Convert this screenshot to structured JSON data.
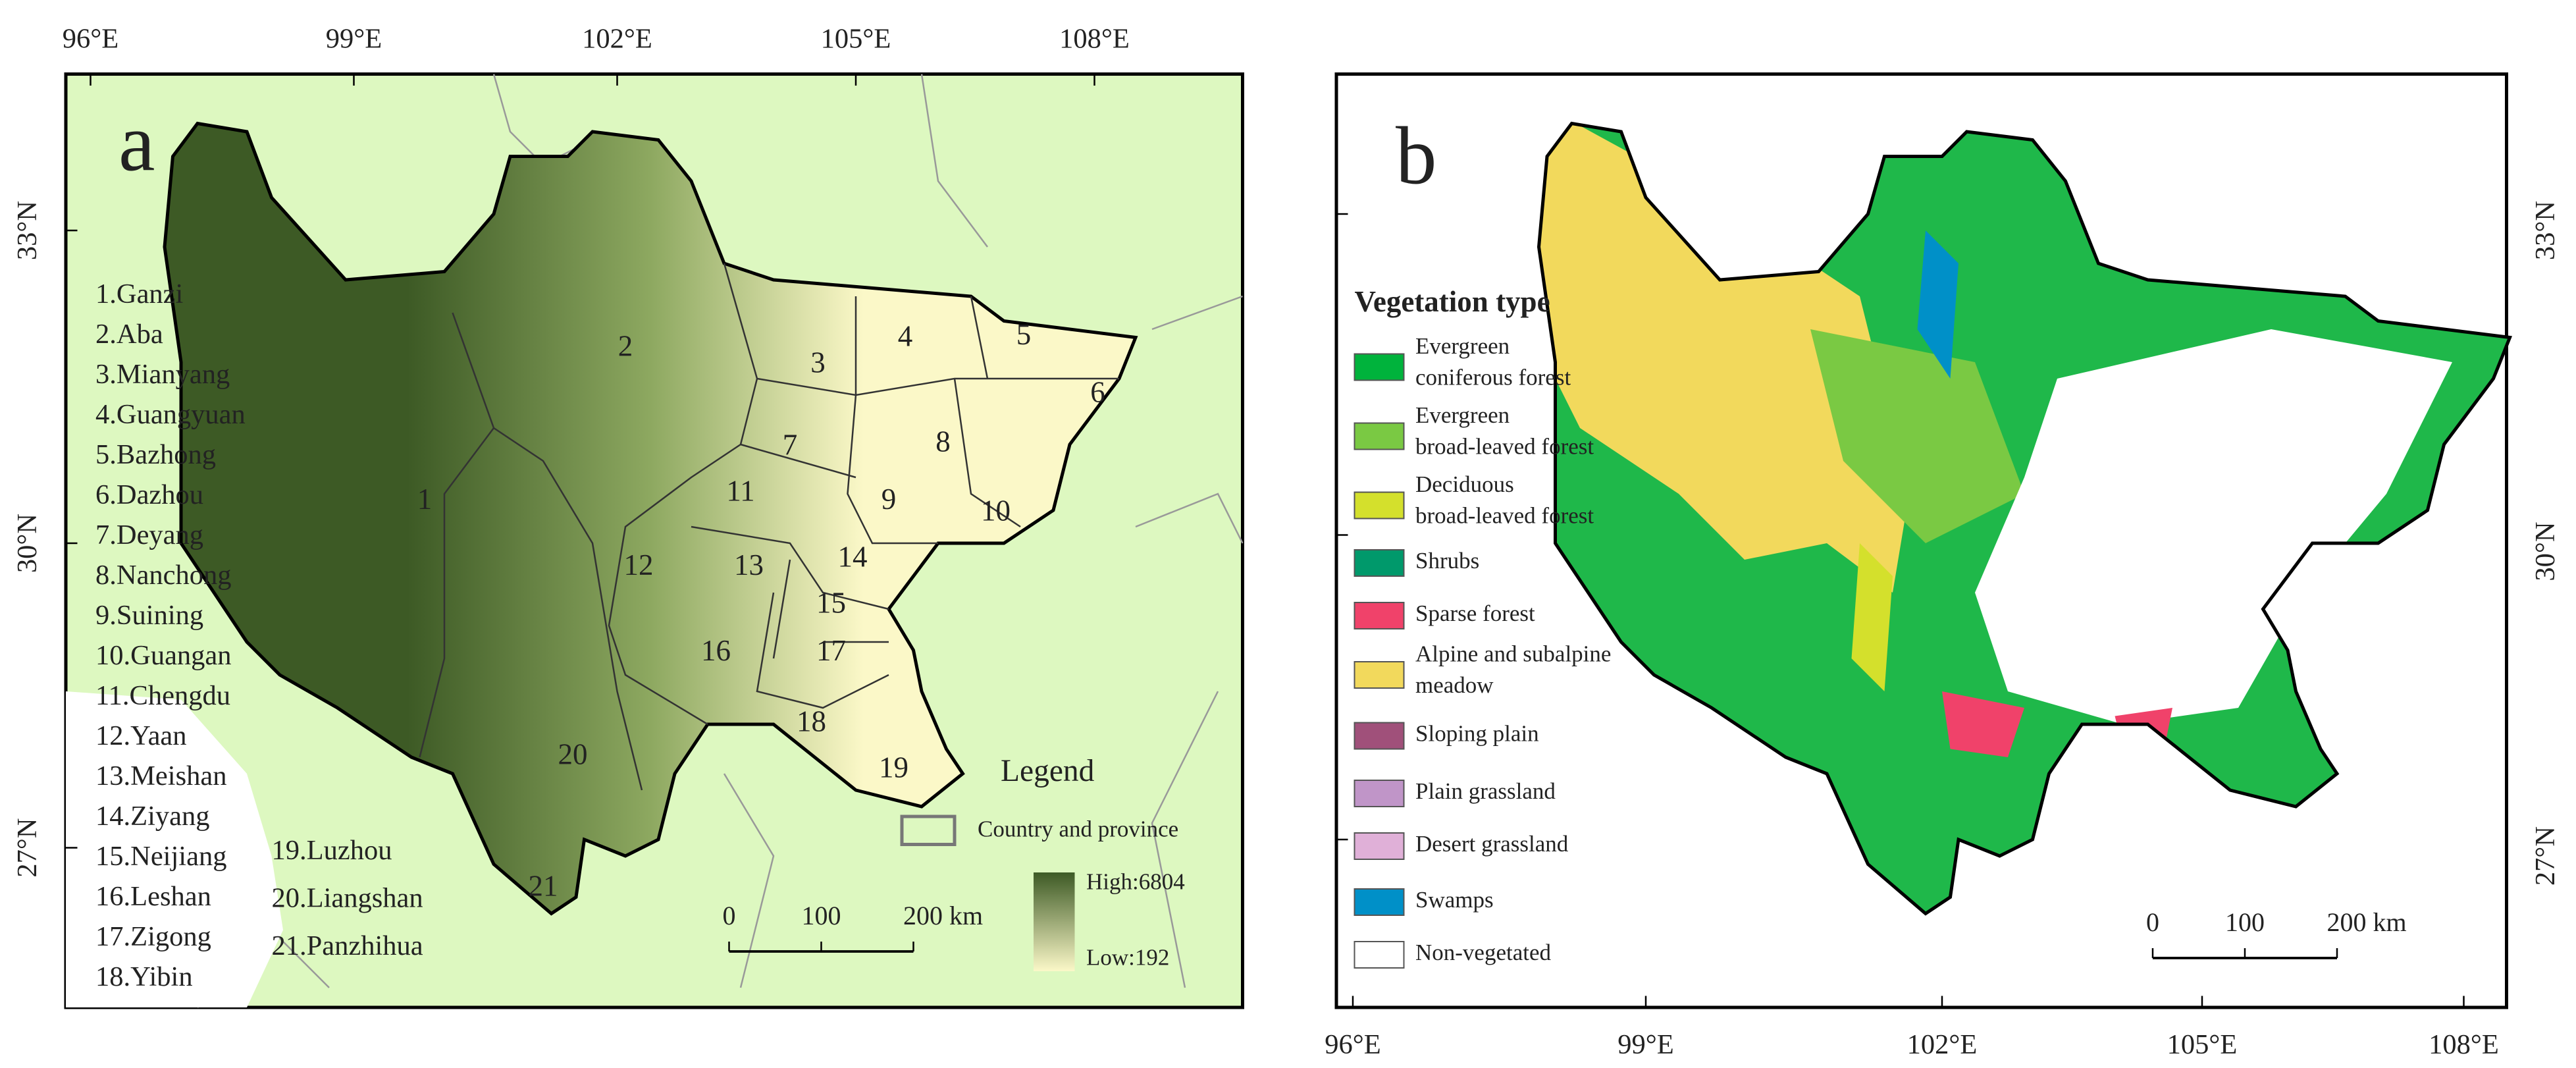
{
  "panels": [
    {
      "label": "a",
      "x_ticks": [
        "96°E",
        "99°E",
        "102°E",
        "105°E",
        "108°E"
      ],
      "y_ticks": [
        "33°N",
        "30°N",
        "27°N"
      ],
      "regions": [
        "1.Ganzi",
        "2.Aba",
        "3.Mianyang",
        "4.Guangyuan",
        "5.Bazhong",
        "6.Dazhou",
        "7.Deyang",
        "8.Nanchong",
        "9.Suining",
        "10.Guangan",
        "11.Chengdu",
        "12.Yaan",
        "13.Meishan",
        "14.Ziyang",
        "15.Neijiang",
        "16.Leshan",
        "17.Zigong",
        "18.Yibin",
        "19.Luzhou",
        "20.Liangshan",
        "21.Panzhihua"
      ],
      "region_numbers": [
        "1",
        "2",
        "3",
        "4",
        "5",
        "6",
        "7",
        "8",
        "9",
        "10",
        "11",
        "12",
        "13",
        "14",
        "15",
        "16",
        "17",
        "18",
        "19",
        "20",
        "21"
      ],
      "legend": {
        "title": "Legend",
        "boundary": "Country and province",
        "high": "High:6804",
        "low": "Low:192",
        "high_color": "#3d5a25",
        "low_color": "#fbf8c8",
        "boundary_color": "#777777"
      },
      "scale_bar": [
        "0",
        "100",
        "200 km"
      ]
    },
    {
      "label": "b",
      "x_ticks": [
        "96°E",
        "99°E",
        "102°E",
        "105°E",
        "108°E"
      ],
      "y_ticks": [
        "33°N",
        "30°N",
        "27°N"
      ],
      "legend": {
        "title": "Vegetation type",
        "items": [
          {
            "lines": [
              "Evergreen",
              "coniferous forest"
            ],
            "color": "#00b33c"
          },
          {
            "lines": [
              "Evergreen",
              "broad-leaved forest"
            ],
            "color": "#7ac943"
          },
          {
            "lines": [
              "Deciduous",
              "broad-leaved forest"
            ],
            "color": "#d4e02c"
          },
          {
            "lines": [
              "Shrubs"
            ],
            "color": "#00996b"
          },
          {
            "lines": [
              "Sparse forest"
            ],
            "color": "#f0426a"
          },
          {
            "lines": [
              "Alpine and subalpine",
              "meadow"
            ],
            "color": "#f2d95c"
          },
          {
            "lines": [
              "Sloping plain"
            ],
            "color": "#a0507a"
          },
          {
            "lines": [
              "Plain grassland"
            ],
            "color": "#c095c8"
          },
          {
            "lines": [
              "Desert grassland"
            ],
            "color": "#e0b0d8"
          },
          {
            "lines": [
              "Swamps"
            ],
            "color": "#0090c8"
          },
          {
            "lines": [
              "Non-vegetated"
            ],
            "color": "#ffffff"
          }
        ]
      },
      "scale_bar": [
        "0",
        "100",
        "200 km"
      ]
    }
  ]
}
